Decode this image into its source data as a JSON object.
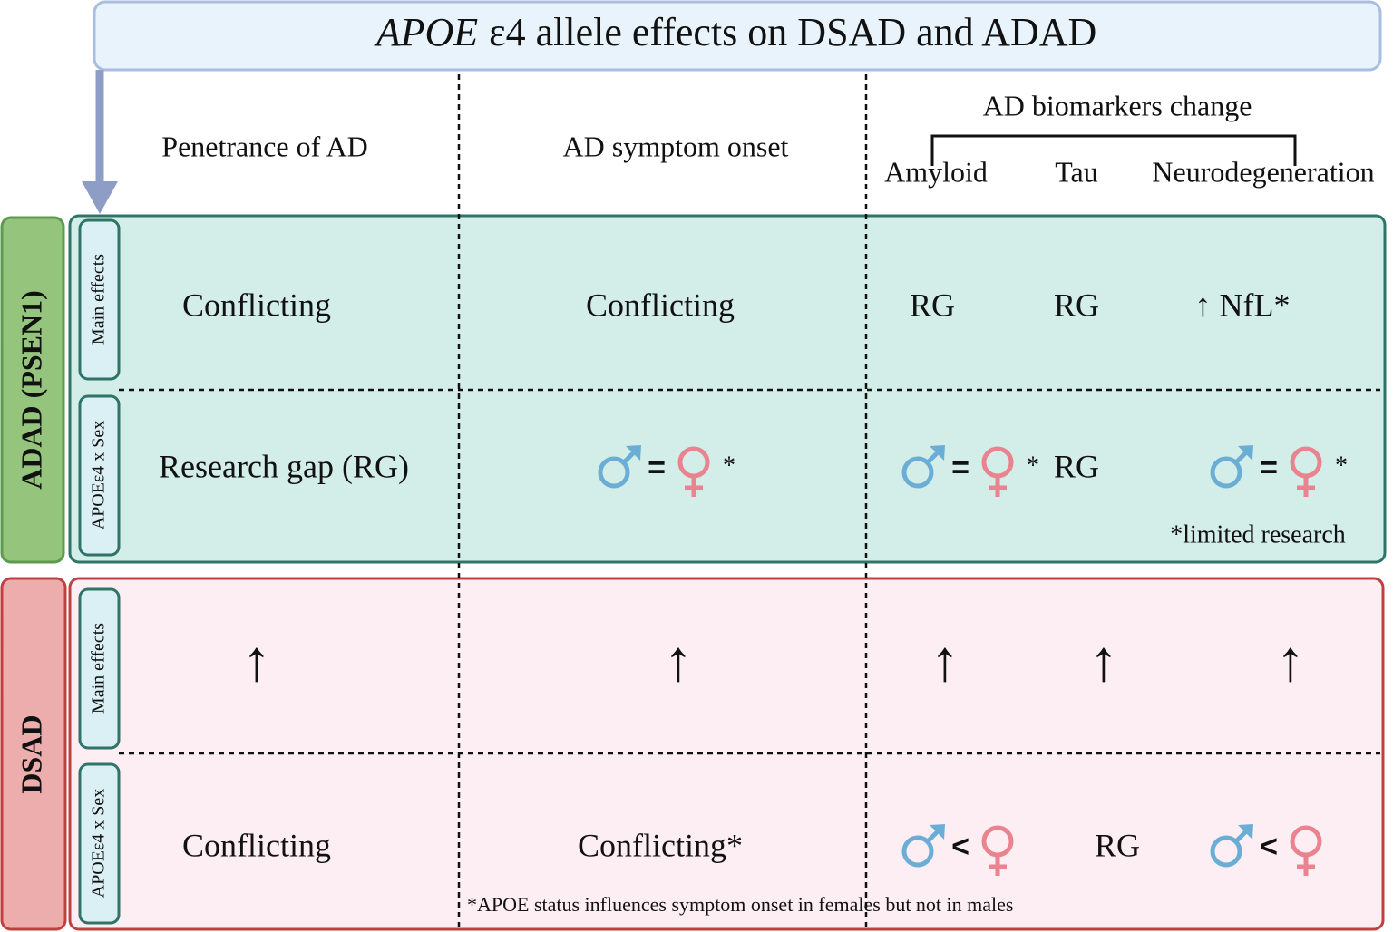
{
  "title": {
    "gene": "APOE",
    "rest": "ε4 allele effects on DSAD and ADAD"
  },
  "columns": [
    "Penetrance of AD",
    "AD symptom onset"
  ],
  "biomarkers": {
    "title": "AD biomarkers change",
    "items": [
      "Amyloid",
      "Tau",
      "Neurodegeneration"
    ]
  },
  "groups": [
    {
      "label": "ADAD (PSEN1)",
      "rows": [
        {
          "label": "Main effects",
          "cells": [
            "Conflicting",
            "Conflicting",
            "RG",
            "RG",
            "↑ NfL*"
          ]
        },
        {
          "label": "APOEε4 x Sex",
          "cells": [
            "Research gap (RG)",
            {
              "op": "=",
              "note": "*"
            },
            {
              "op": "=",
              "note": "*"
            },
            "RG",
            {
              "op": "=",
              "note": "*"
            }
          ]
        }
      ],
      "note": "*limited research"
    },
    {
      "label": "DSAD",
      "rows": [
        {
          "label": "Main effects",
          "cells": [
            "↑",
            "↑",
            "↑",
            "↑",
            "↑"
          ]
        },
        {
          "label": "APOEε4 x Sex",
          "cells": [
            "Conflicting",
            "Conflicting*",
            {
              "op": "<"
            },
            "RG",
            {
              "op": "<"
            }
          ]
        }
      ],
      "note": "*APOE status influences symptom onset in females but not in males"
    }
  ]
}
